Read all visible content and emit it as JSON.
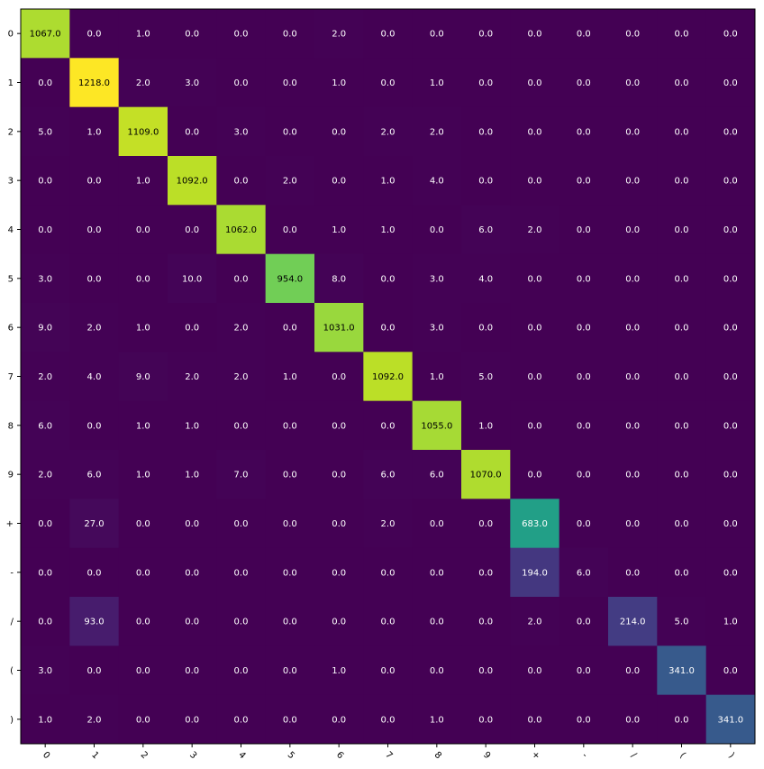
{
  "chart_data": {
    "type": "heatmap",
    "x_labels": [
      "0",
      "1",
      "2",
      "3",
      "4",
      "5",
      "6",
      "7",
      "8",
      "9",
      "+",
      "-",
      "/",
      "(",
      ")"
    ],
    "y_labels": [
      "0",
      "1",
      "2",
      "3",
      "4",
      "5",
      "6",
      "7",
      "8",
      "9",
      "+",
      "-",
      "/",
      "(",
      ")"
    ],
    "values": [
      [
        1067.0,
        0.0,
        1.0,
        0.0,
        0.0,
        0.0,
        2.0,
        0.0,
        0.0,
        0.0,
        0.0,
        0.0,
        0.0,
        0.0,
        0.0
      ],
      [
        0.0,
        1218.0,
        2.0,
        3.0,
        0.0,
        0.0,
        1.0,
        0.0,
        1.0,
        0.0,
        0.0,
        0.0,
        0.0,
        0.0,
        0.0
      ],
      [
        5.0,
        1.0,
        1109.0,
        0.0,
        3.0,
        0.0,
        0.0,
        2.0,
        2.0,
        0.0,
        0.0,
        0.0,
        0.0,
        0.0,
        0.0
      ],
      [
        0.0,
        0.0,
        1.0,
        1092.0,
        0.0,
        2.0,
        0.0,
        1.0,
        4.0,
        0.0,
        0.0,
        0.0,
        0.0,
        0.0,
        0.0
      ],
      [
        0.0,
        0.0,
        0.0,
        0.0,
        1062.0,
        0.0,
        1.0,
        1.0,
        0.0,
        6.0,
        2.0,
        0.0,
        0.0,
        0.0,
        0.0
      ],
      [
        3.0,
        0.0,
        0.0,
        10.0,
        0.0,
        954.0,
        8.0,
        0.0,
        3.0,
        4.0,
        0.0,
        0.0,
        0.0,
        0.0,
        0.0
      ],
      [
        9.0,
        2.0,
        1.0,
        0.0,
        2.0,
        0.0,
        1031.0,
        0.0,
        3.0,
        0.0,
        0.0,
        0.0,
        0.0,
        0.0,
        0.0
      ],
      [
        2.0,
        4.0,
        9.0,
        2.0,
        2.0,
        1.0,
        0.0,
        1092.0,
        1.0,
        5.0,
        0.0,
        0.0,
        0.0,
        0.0,
        0.0
      ],
      [
        6.0,
        0.0,
        1.0,
        1.0,
        0.0,
        0.0,
        0.0,
        0.0,
        1055.0,
        1.0,
        0.0,
        0.0,
        0.0,
        0.0,
        0.0
      ],
      [
        2.0,
        6.0,
        1.0,
        1.0,
        7.0,
        0.0,
        0.0,
        6.0,
        6.0,
        1070.0,
        0.0,
        0.0,
        0.0,
        0.0,
        0.0
      ],
      [
        0.0,
        27.0,
        0.0,
        0.0,
        0.0,
        0.0,
        0.0,
        2.0,
        0.0,
        0.0,
        683.0,
        0.0,
        0.0,
        0.0,
        0.0
      ],
      [
        0.0,
        0.0,
        0.0,
        0.0,
        0.0,
        0.0,
        0.0,
        0.0,
        0.0,
        0.0,
        194.0,
        6.0,
        0.0,
        0.0,
        0.0
      ],
      [
        0.0,
        93.0,
        0.0,
        0.0,
        0.0,
        0.0,
        0.0,
        0.0,
        0.0,
        0.0,
        2.0,
        0.0,
        214.0,
        5.0,
        1.0
      ],
      [
        3.0,
        0.0,
        0.0,
        0.0,
        0.0,
        0.0,
        1.0,
        0.0,
        0.0,
        0.0,
        0.0,
        0.0,
        0.0,
        341.0,
        0.0
      ],
      [
        1.0,
        2.0,
        0.0,
        0.0,
        0.0,
        0.0,
        0.0,
        0.0,
        1.0,
        0.0,
        0.0,
        0.0,
        0.0,
        0.0,
        341.0
      ]
    ],
    "value_format": "one-decimal",
    "colormap": "viridis",
    "color_range": [
      0,
      1218
    ],
    "x_tick_rotation": "45deg",
    "grid": false,
    "legend": "none",
    "title": "",
    "xlabel": "",
    "ylabel": ""
  }
}
